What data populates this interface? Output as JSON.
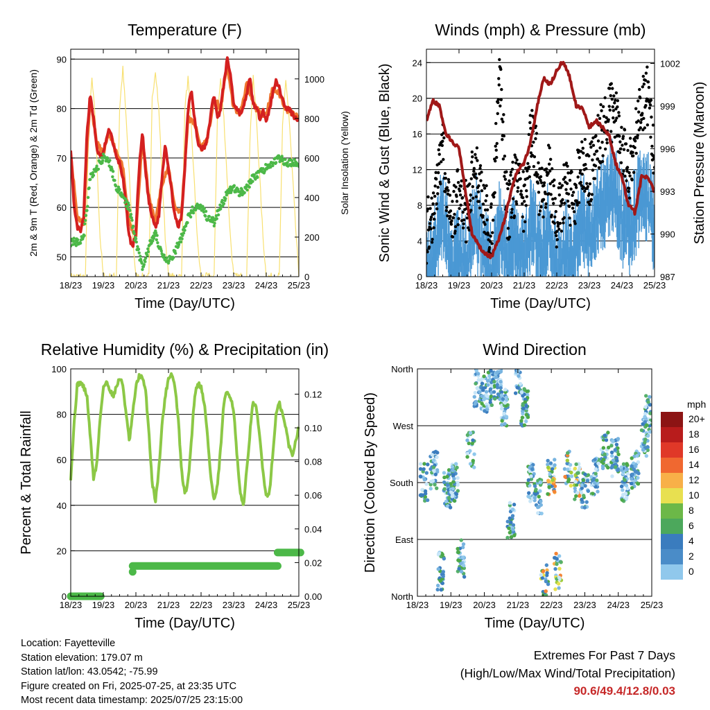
{
  "panels": {
    "temperature": {
      "title": "Temperature (F)",
      "ylabel_left": "2m & 9m T (Red, Orange) & 2m Td (Green)",
      "ylabel_right": "Solar Insolation (Yellow)",
      "xlabel": "Time (Day/UTC)"
    },
    "winds": {
      "title": "Winds (mph) & Pressure (mb)",
      "ylabel_left": "Sonic Wind & Gust (Blue, Black)",
      "ylabel_right": "Station Pressure (Maroon)",
      "xlabel": "Time (Day/UTC)"
    },
    "humidity": {
      "title": "Relative Humidity (%) & Precipitation (in)",
      "ylabel_left": "Percent & Total Rainfall",
      "xlabel": "Time (Day/UTC)"
    },
    "direction": {
      "title": "Wind Direction",
      "ylabel_left": "Direction (Colored By Speed)",
      "xlabel": "Time (Day/UTC)",
      "legend_title": "mph"
    }
  },
  "info": {
    "location": "Location: Fayetteville",
    "elevation": "Station elevation: 179.07 m",
    "latlon": "Station lat/lon: 43.0542; -75.99",
    "created": "Figure created on Fri, 2025-07-25, at 23:35 UTC",
    "recent": "Most recent data timestamp: 2025/07/25 23:15:00"
  },
  "extremes": {
    "title": "Extremes For Past 7 Days",
    "subtitle": "(High/Low/Max Wind/Total Precipitation)",
    "values": "90.6/49.4/12.8/0.03"
  },
  "colors": {
    "temp2m": "#d42020",
    "temp9m": "#f07830",
    "dewpoint": "#4cb848",
    "solar": "#f8e070",
    "wind": "#4a98d4",
    "gust": "#000000",
    "pressure": "#a01818",
    "rh": "#8cc846",
    "precip": "#4cb848",
    "speed_scale": [
      "#c8e6f8",
      "#90c8ec",
      "#78b4e0",
      "#4a8cc8",
      "#3a7cbe",
      "#56b06a",
      "#4ca848",
      "#a0cc3c",
      "#e8e050",
      "#f8b048",
      "#f48434",
      "#e85028",
      "#d42424",
      "#b01c1c",
      "#8c1414"
    ]
  },
  "chart_data": [
    {
      "type": "line",
      "title": "Temperature (F)",
      "xlabel": "Time (Day/UTC)",
      "ylabel": "2m & 9m T (Red, Orange) & 2m Td (Green)",
      "ylabel_right": "Solar Insolation (Yellow)",
      "x_ticks": [
        "18/23",
        "19/23",
        "20/23",
        "21/23",
        "22/23",
        "23/23",
        "24/23",
        "25/23"
      ],
      "xlim": [
        0,
        7
      ],
      "ylim": [
        46,
        92
      ],
      "y_ticks": [
        50,
        60,
        70,
        80,
        90
      ],
      "y2lim": [
        0,
        1150
      ],
      "y2_ticks": [
        0,
        200,
        400,
        600,
        800,
        1000
      ],
      "grid": true,
      "series": [
        {
          "name": "2m T",
          "axis": "left",
          "x": [
            0,
            0.05,
            0.1,
            0.2,
            0.3,
            0.4,
            0.5,
            0.6,
            0.7,
            0.8,
            0.9,
            1.0,
            1.1,
            1.2,
            1.3,
            1.4,
            1.5,
            1.6,
            1.7,
            1.8,
            1.9,
            2.0,
            2.1,
            2.2,
            2.3,
            2.4,
            2.5,
            2.6,
            2.7,
            2.8,
            2.9,
            3.0,
            3.1,
            3.2,
            3.3,
            3.4,
            3.5,
            3.6,
            3.7,
            3.8,
            3.9,
            4.0,
            4.1,
            4.2,
            4.3,
            4.4,
            4.5,
            4.6,
            4.7,
            4.8,
            4.9,
            5.0,
            5.1,
            5.2,
            5.3,
            5.4,
            5.5,
            5.6,
            5.7,
            5.8,
            5.9,
            6.0,
            6.1,
            6.2,
            6.3,
            6.4,
            6.5,
            6.6,
            6.7,
            6.8,
            6.9,
            7.0
          ],
          "y": [
            72,
            66,
            60,
            56,
            55,
            58,
            75,
            83,
            78,
            72,
            70,
            71,
            74,
            76,
            73,
            70,
            69,
            66,
            60,
            54,
            52,
            55,
            68,
            75,
            67,
            61,
            58,
            56,
            58,
            66,
            73,
            68,
            63,
            58,
            56,
            58,
            68,
            80,
            84,
            78,
            73,
            72,
            72,
            74,
            79,
            83,
            78,
            80,
            85,
            90,
            87,
            81,
            80,
            79,
            80,
            83,
            86,
            81,
            80,
            78,
            80,
            77,
            80,
            83,
            86,
            84,
            82,
            80,
            80,
            79,
            78,
            78
          ]
        },
        {
          "name": "9m T",
          "axis": "left",
          "x": [
            0,
            0.2,
            0.4,
            0.5,
            0.6,
            0.8,
            1.0,
            1.2,
            1.4,
            1.6,
            1.8,
            2.0,
            2.2,
            2.4,
            2.6,
            2.8,
            3.0,
            3.2,
            3.4,
            3.6,
            3.8,
            4.0,
            4.2,
            4.4,
            4.6,
            4.8,
            5.0,
            5.2,
            5.4,
            5.6,
            5.8,
            6.0,
            6.2,
            6.4,
            6.6,
            6.8,
            7.0
          ],
          "y": [
            71,
            58,
            57,
            72,
            82,
            73,
            71,
            75,
            71,
            68,
            57,
            54,
            74,
            62,
            57,
            65,
            68,
            60,
            59,
            78,
            77,
            72,
            74,
            82,
            80,
            89,
            80,
            79,
            85,
            81,
            79,
            79,
            84,
            83,
            80,
            79,
            78
          ]
        },
        {
          "name": "2m Td",
          "axis": "left",
          "x": [
            0,
            0.2,
            0.4,
            0.5,
            0.6,
            0.8,
            1.0,
            1.2,
            1.4,
            1.6,
            1.8,
            2.0,
            2.2,
            2.4,
            2.6,
            2.8,
            3.0,
            3.2,
            3.4,
            3.6,
            3.8,
            4.0,
            4.2,
            4.4,
            4.6,
            4.8,
            5.0,
            5.2,
            5.4,
            5.6,
            5.8,
            6.0,
            6.2,
            6.4,
            6.6,
            6.8,
            7.0
          ],
          "y": [
            53,
            53,
            54,
            60,
            66,
            68,
            70,
            69,
            64,
            62,
            60,
            53,
            48,
            52,
            55,
            50,
            49,
            51,
            54,
            58,
            60,
            60,
            58,
            57,
            60,
            63,
            64,
            63,
            64,
            66,
            67,
            68,
            69,
            70,
            69,
            69,
            69
          ]
        },
        {
          "name": "Solar Insolation",
          "axis": "right",
          "x": [
            0,
            0.45,
            0.55,
            0.65,
            0.75,
            0.9,
            1.0,
            1.4,
            1.5,
            1.6,
            1.7,
            1.9,
            2.0,
            2.4,
            2.5,
            2.6,
            2.7,
            2.9,
            3.0,
            3.4,
            3.5,
            3.6,
            3.7,
            3.9,
            4.0,
            4.4,
            4.5,
            4.6,
            4.7,
            4.9,
            5.0,
            5.4,
            5.5,
            5.6,
            5.7,
            5.9,
            6.0,
            6.4,
            6.5,
            6.6,
            6.7,
            6.9,
            7.0
          ],
          "y": [
            0,
            0,
            750,
            1000,
            800,
            200,
            0,
            0,
            850,
            1050,
            800,
            200,
            0,
            0,
            900,
            1050,
            850,
            200,
            0,
            0,
            850,
            1000,
            750,
            150,
            0,
            0,
            800,
            1000,
            800,
            200,
            0,
            0,
            700,
            1000,
            800,
            200,
            0,
            0,
            750,
            1000,
            800,
            250,
            0
          ]
        }
      ]
    },
    {
      "type": "scatter",
      "title": "Winds (mph) & Pressure (mb)",
      "xlabel": "Time (Day/UTC)",
      "ylabel": "Sonic Wind & Gust (Blue, Black)",
      "ylabel_right": "Station Pressure (Maroon)",
      "x_ticks": [
        "18/23",
        "19/23",
        "20/23",
        "21/23",
        "22/23",
        "23/23",
        "24/23",
        "25/23"
      ],
      "xlim": [
        0,
        7
      ],
      "ylim": [
        0,
        25.5
      ],
      "y_ticks": [
        0,
        4,
        8,
        12,
        16,
        20,
        24
      ],
      "y2lim": [
        987,
        1003
      ],
      "y2_ticks": [
        987,
        990,
        993,
        996,
        999,
        1002
      ],
      "grid": true,
      "series": [
        {
          "name": "Sonic Wind",
          "axis": "left",
          "x": [
            0,
            0.25,
            0.5,
            0.75,
            1.0,
            1.25,
            1.5,
            1.75,
            2.0,
            2.25,
            2.5,
            2.75,
            3.0,
            3.25,
            3.5,
            3.75,
            4.0,
            4.25,
            4.5,
            4.75,
            5.0,
            5.25,
            5.5,
            5.75,
            6.0,
            6.25,
            6.5,
            6.75,
            7.0
          ],
          "y": [
            2,
            4,
            9,
            2,
            4,
            3,
            8,
            4,
            2,
            7,
            3,
            6,
            3,
            8,
            4,
            7,
            2,
            5,
            3,
            8,
            6,
            9,
            10,
            12,
            8,
            7,
            10,
            11,
            7
          ]
        },
        {
          "name": "Gust",
          "axis": "left",
          "x": [
            0,
            0.25,
            0.5,
            0.75,
            1.0,
            1.25,
            1.5,
            1.75,
            2.0,
            2.25,
            2.5,
            2.75,
            3.0,
            3.25,
            3.5,
            3.75,
            4.0,
            4.25,
            4.5,
            4.75,
            5.0,
            5.25,
            5.5,
            5.75,
            6.0,
            6.25,
            6.5,
            6.75,
            7.0
          ],
          "y": [
            5,
            8,
            14,
            6,
            9,
            7,
            13,
            8,
            5,
            22,
            7,
            11,
            8,
            17,
            9,
            12,
            6,
            10,
            8,
            13,
            11,
            15,
            17,
            19,
            14,
            12,
            17,
            21,
            13
          ]
        },
        {
          "name": "Station Pressure",
          "axis": "right",
          "x": [
            0,
            0.2,
            0.4,
            0.6,
            0.8,
            1.0,
            1.2,
            1.4,
            1.6,
            1.8,
            2.0,
            2.2,
            2.4,
            2.6,
            2.8,
            3.0,
            3.2,
            3.4,
            3.6,
            3.8,
            4.0,
            4.2,
            4.4,
            4.6,
            4.8,
            5.0,
            5.2,
            5.4,
            5.6,
            5.8,
            6.0,
            6.2,
            6.4,
            6.6,
            6.8,
            7.0
          ],
          "y": [
            998,
            999.4,
            999,
            997,
            996.5,
            996,
            993,
            990,
            989.2,
            988.6,
            988.4,
            989.5,
            991,
            993,
            994.5,
            995,
            996.5,
            999,
            1001,
            1000.5,
            1001.5,
            1002.2,
            1001,
            999,
            998.8,
            997.5,
            998,
            997.5,
            997,
            995,
            994,
            992,
            991.5,
            994,
            994,
            993
          ]
        }
      ]
    },
    {
      "type": "line",
      "title": "Relative Humidity (%) & Precipitation (in)",
      "xlabel": "Time (Day/UTC)",
      "ylabel": "Percent & Total Rainfall",
      "x_ticks": [
        "18/23",
        "19/23",
        "20/23",
        "21/23",
        "22/23",
        "23/23",
        "24/23",
        "25/23"
      ],
      "xlim": [
        0,
        7
      ],
      "ylim": [
        0,
        100
      ],
      "y_ticks": [
        0,
        20,
        40,
        60,
        80,
        100
      ],
      "y2lim": [
        0,
        0.135
      ],
      "y2_ticks": [
        0.0,
        0.02,
        0.04,
        0.06,
        0.08,
        0.1,
        0.12
      ],
      "grid": true,
      "series": [
        {
          "name": "Relative Humidity",
          "axis": "left",
          "x": [
            0,
            0.1,
            0.2,
            0.3,
            0.4,
            0.5,
            0.6,
            0.7,
            0.8,
            0.9,
            1.0,
            1.1,
            1.2,
            1.3,
            1.4,
            1.5,
            1.6,
            1.7,
            1.8,
            1.9,
            2.0,
            2.1,
            2.2,
            2.3,
            2.4,
            2.5,
            2.6,
            2.7,
            2.8,
            2.9,
            3.0,
            3.1,
            3.2,
            3.3,
            3.4,
            3.5,
            3.6,
            3.7,
            3.8,
            3.9,
            4.0,
            4.1,
            4.2,
            4.3,
            4.4,
            4.5,
            4.6,
            4.7,
            4.8,
            4.9,
            5.0,
            5.1,
            5.2,
            5.3,
            5.4,
            5.5,
            5.6,
            5.7,
            5.8,
            5.9,
            6.0,
            6.1,
            6.2,
            6.3,
            6.4,
            6.5,
            6.6,
            6.7,
            6.8,
            6.9,
            7.0
          ],
          "y": [
            52,
            75,
            93,
            94,
            92,
            88,
            70,
            52,
            58,
            78,
            92,
            94,
            91,
            88,
            92,
            96,
            93,
            80,
            68,
            80,
            92,
            97,
            96,
            90,
            72,
            50,
            42,
            55,
            75,
            88,
            96,
            98,
            92,
            78,
            55,
            45,
            50,
            68,
            88,
            94,
            92,
            85,
            70,
            52,
            42,
            48,
            65,
            85,
            90,
            88,
            82,
            62,
            45,
            40,
            55,
            72,
            86,
            82,
            70,
            55,
            44,
            46,
            62,
            80,
            85,
            80,
            74,
            66,
            62,
            68,
            75
          ]
        },
        {
          "name": "Total Precipitation",
          "axis": "right",
          "x": [
            0,
            0.9,
            1.0,
            1.85,
            1.9,
            6.3,
            6.4,
            7.0
          ],
          "y": [
            0,
            0,
            0,
            0,
            0.018,
            0.018,
            0.026,
            0.026
          ]
        }
      ]
    },
    {
      "type": "scatter",
      "title": "Wind Direction",
      "xlabel": "Time (Day/UTC)",
      "ylabel": "Direction (Colored By Speed)",
      "x_ticks": [
        "18/23",
        "19/23",
        "20/23",
        "21/23",
        "22/23",
        "23/23",
        "24/23",
        "25/23"
      ],
      "xlim": [
        0,
        7
      ],
      "ylim": [
        0,
        360
      ],
      "y_ticks": [
        "North",
        "East",
        "South",
        "West",
        "North"
      ],
      "legend_title": "mph",
      "legend_ticks": [
        "0",
        "2",
        "4",
        "6",
        "8",
        "10",
        "12",
        "14",
        "16",
        "18",
        "20+"
      ],
      "grid": true,
      "series": [
        {
          "name": "Direction",
          "x": [
            0.2,
            0.5,
            0.7,
            0.9,
            1.1,
            1.3,
            1.6,
            1.8,
            2.0,
            2.2,
            2.4,
            2.6,
            2.8,
            3.0,
            3.2,
            3.4,
            3.6,
            3.8,
            4.0,
            4.2,
            4.5,
            4.8,
            5.0,
            5.3,
            5.6,
            5.9,
            6.2,
            6.5,
            6.8,
            6.9
          ],
          "y": [
            180,
            200,
            40,
            170,
            180,
            60,
            230,
            330,
            320,
            330,
            340,
            300,
            120,
            350,
            300,
            180,
            160,
            20,
            190,
            40,
            200,
            180,
            170,
            190,
            230,
            220,
            180,
            200,
            250,
            290
          ]
        }
      ]
    }
  ]
}
